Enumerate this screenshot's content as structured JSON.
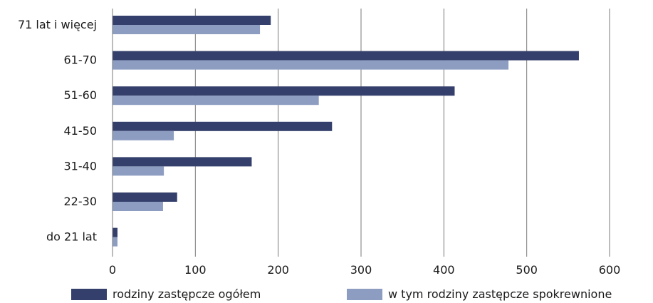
{
  "chart_data": {
    "type": "bar",
    "orientation": "horizontal",
    "categories": [
      "71 lat i więcej",
      "61-70",
      "51-60",
      "41-50",
      "31-40",
      "22-30",
      "do 21 lat"
    ],
    "series": [
      {
        "name": "rodziny zastępcze ogółem",
        "color": "#343f6b",
        "values": [
          191,
          563,
          413,
          265,
          168,
          78,
          6
        ]
      },
      {
        "name": "w tym rodziny zastępcze spokrewnione",
        "color": "#8d9dc2",
        "values": [
          178,
          478,
          249,
          74,
          62,
          61,
          6
        ]
      }
    ],
    "xlim": [
      0,
      600
    ],
    "xticks": [
      "0",
      "100",
      "200",
      "300",
      "400",
      "500",
      "600"
    ],
    "grid": "vertical",
    "legend": "bottom"
  }
}
